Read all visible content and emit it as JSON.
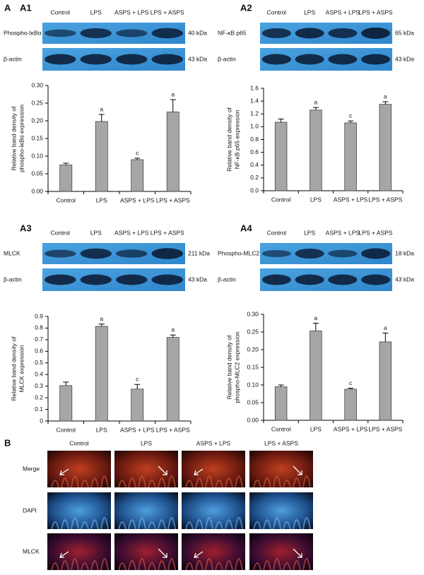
{
  "panel_a": {
    "label": "A",
    "blots": [
      {
        "label": "A1",
        "columns": [
          "Control",
          "LPS",
          "ASPS + LPS",
          "LPS + ASPS"
        ],
        "target": "Phospho-IκBα",
        "target_kda": "40 kDa",
        "control": "β-actin",
        "control_kda": "43 kDa"
      },
      {
        "label": "A2",
        "columns": [
          "Control",
          "LPS",
          "ASPS + LPS",
          "LPS + ASPS"
        ],
        "target": "NF-κB p65",
        "target_kda": "65 kDa",
        "control": "β-actin",
        "control_kda": "43 kDa"
      },
      {
        "label": "A3",
        "columns": [
          "Control",
          "LPS",
          "ASPS + LPS",
          "LPS + ASPS"
        ],
        "target": "MLCK",
        "target_kda": "211 kDa",
        "control": "β-actin",
        "control_kda": "43 kDa"
      },
      {
        "label": "A4",
        "columns": [
          "Control",
          "LPS",
          "ASPS + LPS",
          "LPS + ASPS"
        ],
        "target": "Phospho-MLC2",
        "target_kda": "18 kDa",
        "control": "β-actin",
        "control_kda": "43 kDa"
      }
    ]
  },
  "chart_data": [
    {
      "type": "bar",
      "ylabel": [
        "Relative band density of",
        "phospho-IκBα expression"
      ],
      "categories": [
        "Control",
        "LPS",
        "ASPS + LPS",
        "LPS + ASPS"
      ],
      "values": [
        0.075,
        0.198,
        0.09,
        0.225
      ],
      "errors": [
        0.005,
        0.02,
        0.004,
        0.035
      ],
      "annotations": [
        null,
        "a",
        "c",
        "a"
      ],
      "color": "#a6a6a6",
      "ylim": [
        0,
        0.3
      ],
      "yticks": [
        {
          "value": 0,
          "label": "0.00"
        },
        {
          "value": 0.05,
          "label": "0.05"
        },
        {
          "value": 0.1,
          "label": "0.10"
        },
        {
          "value": 0.15,
          "label": "0.15"
        },
        {
          "value": 0.2,
          "label": "0.20"
        },
        {
          "value": 0.25,
          "label": "0.25"
        },
        {
          "value": 0.3,
          "label": "0.30"
        }
      ]
    },
    {
      "type": "bar",
      "ylabel": [
        "Relative band density of",
        "NF-κB p65 expression"
      ],
      "categories": [
        "Control",
        "LPS",
        "ASPS + LPS",
        "LPS + ASPS"
      ],
      "values": [
        1.07,
        1.26,
        1.06,
        1.35
      ],
      "errors": [
        0.05,
        0.04,
        0.03,
        0.04
      ],
      "annotations": [
        null,
        "a",
        "c",
        "a"
      ],
      "color": "#a6a6a6",
      "ylim": [
        0,
        1.6
      ],
      "yticks": [
        {
          "value": 0,
          "label": "0.0"
        },
        0.2,
        0.4,
        0.6,
        0.8,
        {
          "value": 1,
          "label": "1.0"
        },
        1.2,
        1.4,
        1.6
      ]
    },
    {
      "type": "bar",
      "ylabel": [
        "Relative band density of",
        "MLCK expression"
      ],
      "categories": [
        "Control",
        "LPS",
        "ASPS + LPS",
        "LPS + ASPS"
      ],
      "values": [
        0.305,
        0.815,
        0.275,
        0.72
      ],
      "errors": [
        0.03,
        0.02,
        0.04,
        0.02
      ],
      "annotations": [
        null,
        "a",
        "c",
        "a"
      ],
      "color": "#a6a6a6",
      "ylim": [
        0,
        0.9
      ],
      "yticks": [
        0,
        0.1,
        0.2,
        0.3,
        0.4,
        0.5,
        0.6,
        0.7,
        0.8,
        0.9
      ]
    },
    {
      "type": "bar",
      "ylabel": [
        "Relative band density of",
        "phospho-MLC2 expression"
      ],
      "categories": [
        "Control",
        "LPS",
        "ASPS + LPS",
        "LPS + ASPS"
      ],
      "values": [
        0.095,
        0.253,
        0.088,
        0.222
      ],
      "errors": [
        0.005,
        0.022,
        0.003,
        0.025
      ],
      "annotations": [
        null,
        "a",
        "c",
        "a"
      ],
      "color": "#a6a6a6",
      "ylim": [
        0,
        0.3
      ],
      "yticks": [
        {
          "value": 0,
          "label": "0.00"
        },
        {
          "value": 0.05,
          "label": "0.05"
        },
        {
          "value": 0.1,
          "label": "0.10"
        },
        {
          "value": 0.15,
          "label": "0.15"
        },
        {
          "value": 0.2,
          "label": "0.20"
        },
        {
          "value": 0.25,
          "label": "0.25"
        },
        {
          "value": 0.3,
          "label": "0.30"
        }
      ]
    }
  ],
  "panel_b": {
    "label": "B",
    "columns": [
      "Control",
      "LPS",
      "ASPS + LPS",
      "LPS + ASPS"
    ],
    "rows": [
      "Merge",
      "DAPI",
      "MLCK"
    ]
  }
}
